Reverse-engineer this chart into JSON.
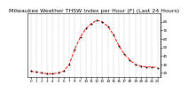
{
  "title": "Milwaukee Weather THSW Index per Hour (F) (Last 24 Hours)",
  "hours": [
    0,
    1,
    2,
    3,
    4,
    5,
    6,
    7,
    8,
    9,
    10,
    11,
    12,
    13,
    14,
    15,
    16,
    17,
    18,
    19,
    20,
    21,
    22,
    23
  ],
  "values": [
    22,
    21,
    20,
    19,
    19,
    20,
    22,
    30,
    48,
    62,
    72,
    78,
    82,
    80,
    75,
    65,
    52,
    42,
    35,
    30,
    28,
    27,
    27,
    26
  ],
  "line_color": "#ff0000",
  "marker_color": "#000000",
  "background_color": "#ffffff",
  "grid_color": "#888888",
  "ylim": [
    15,
    90
  ],
  "yticks": [
    20,
    30,
    40,
    50,
    60,
    70,
    80
  ],
  "ytick_labels": [
    "20",
    "30",
    "40",
    "50",
    "60",
    "70",
    "80"
  ],
  "right_axis_color": "#000000",
  "title_fontsize": 4.5,
  "tick_fontsize": 3.0
}
